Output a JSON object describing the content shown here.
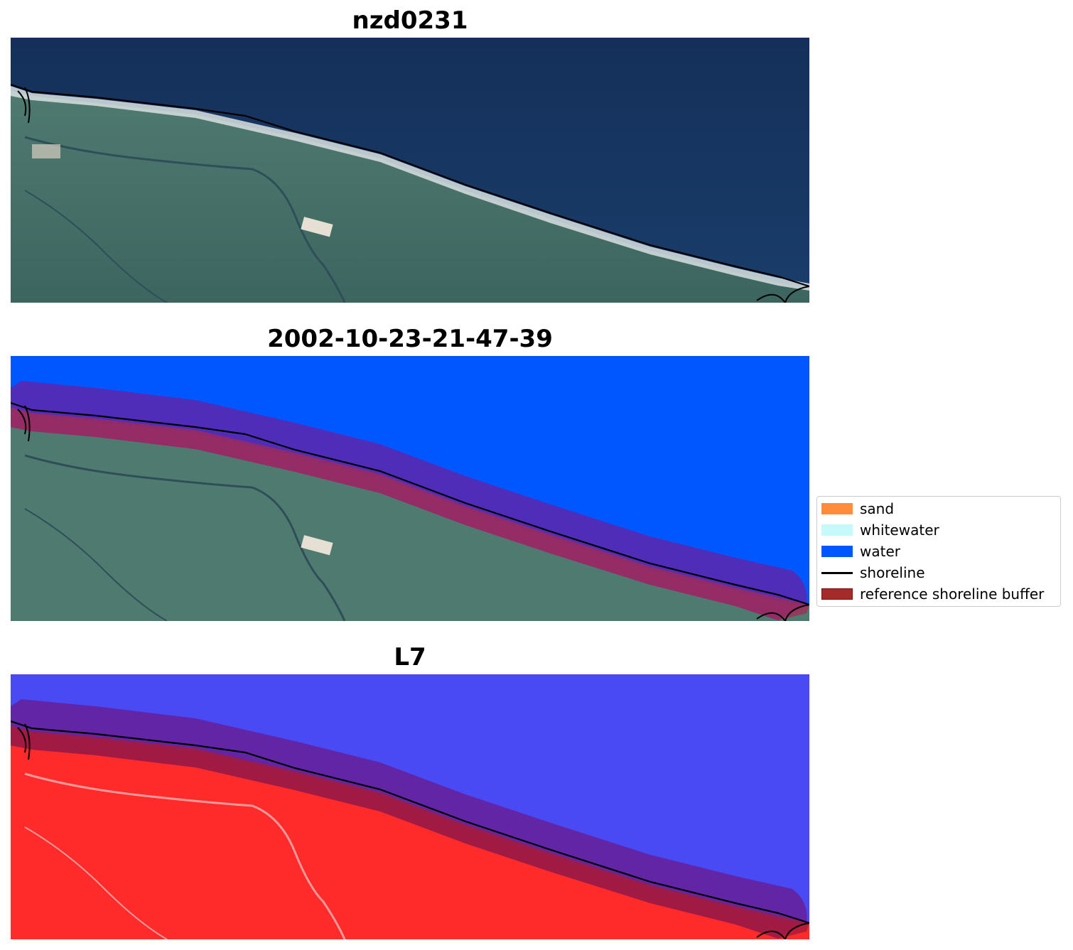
{
  "panels": [
    {
      "title": "nzd0231"
    },
    {
      "title": "2002-10-23-21-47-39"
    },
    {
      "title": "L7"
    }
  ],
  "legend": {
    "items": [
      {
        "label": "sand",
        "color": "#ff8c3a",
        "kind": "patch"
      },
      {
        "label": "whitewater",
        "color": "#c6fafa",
        "kind": "patch"
      },
      {
        "label": "water",
        "color": "#0057ff",
        "kind": "patch"
      },
      {
        "label": "shoreline",
        "color": "#000000",
        "kind": "line"
      },
      {
        "label": "reference shoreline buffer",
        "color": "#a52a2a",
        "kind": "patch"
      }
    ]
  }
}
